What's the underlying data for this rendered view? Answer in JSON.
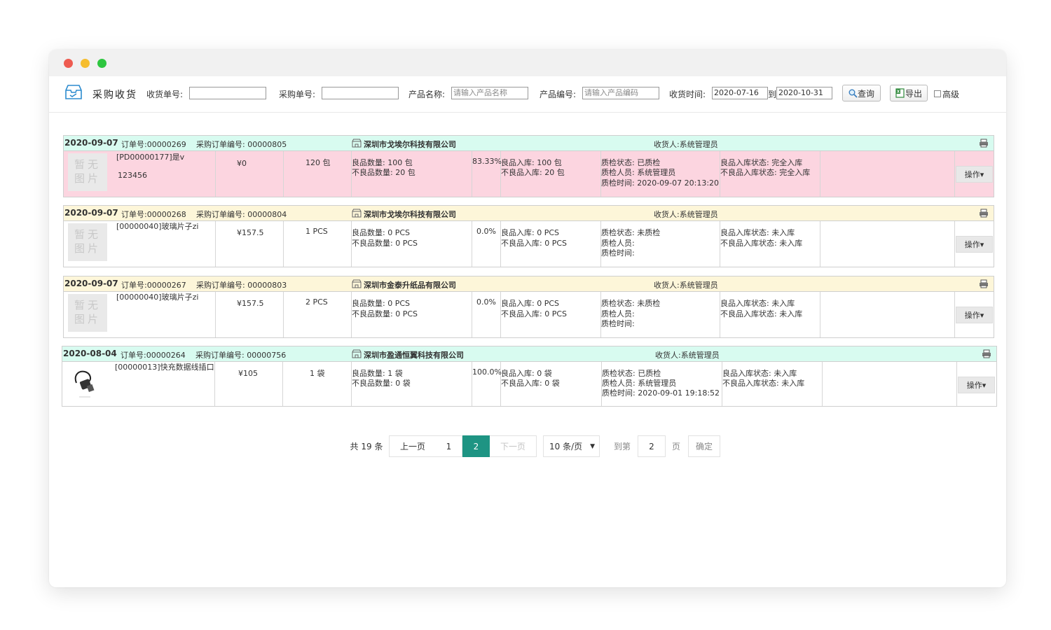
{
  "page": {
    "title": "采购收货",
    "filters": {
      "receipt_no_label": "收货单号:",
      "receipt_no_value": "",
      "purchase_no_label": "采购单号:",
      "purchase_no_value": "",
      "product_name_label": "产品名称:",
      "product_name_placeholder": "请输入产品名称",
      "product_code_label": "产品编号:",
      "product_code_placeholder": "请输入产品编码",
      "receive_time_label": "收货时间:",
      "date_from": "2020-07-16",
      "date_to_sep": "到",
      "date_to": "2020-10-31",
      "query_button": "查询",
      "export_button": "导出",
      "advanced_label": "高级"
    }
  },
  "colors": {
    "header_green": "#d8fbf0",
    "header_yellow": "#fdf6d9",
    "row_pink": "#fcd5e0",
    "pager_active": "#1e9483"
  },
  "orders": [
    {
      "date": "2020-09-07",
      "order_no": "订单号:00000269",
      "po_no": "采购订单编号: 00000805",
      "supplier": "深圳市戈埃尔科技有限公司",
      "receiver": "收货人:系统管理员",
      "image_text": "暂无图片",
      "product_line1": "[PD00000177]是v",
      "product_line2": "123456",
      "price": "¥0",
      "qty": "120 包",
      "good_qty": "良品数量:   100 包",
      "bad_qty": "不良品数量: 20 包",
      "rate": "83.33%",
      "good_in": "良品入库: 100 包",
      "bad_in": "不良品入库: 20 包",
      "qc_status": "质检状态: 已质检",
      "qc_person": "质检人员: 系统管理员",
      "qc_time": "质检时间: 2020-09-07 20:13:20",
      "good_in_status": "良品入库状态: 完全入库",
      "bad_in_status": "不良品入库状态: 完全入库",
      "op_button": "操作▾"
    },
    {
      "date": "2020-09-07",
      "order_no": "订单号:00000268",
      "po_no": "采购订单编号: 00000804",
      "supplier": "深圳市戈埃尔科技有限公司",
      "receiver": "收货人:系统管理员",
      "image_text": "暂无图片",
      "product_line1": "[00000040]玻璃片子zi",
      "product_line2": "",
      "price": "¥157.5",
      "qty": "1 PCS",
      "good_qty": "良品数量:   0 PCS",
      "bad_qty": "不良品数量: 0 PCS",
      "rate": "0.0%",
      "good_in": "良品入库: 0 PCS",
      "bad_in": "不良品入库: 0 PCS",
      "qc_status": "质检状态: 未质检",
      "qc_person": "质检人员:",
      "qc_time": "质检时间:",
      "good_in_status": "良品入库状态: 未入库",
      "bad_in_status": "不良品入库状态: 未入库",
      "op_button": "操作▾"
    },
    {
      "date": "2020-09-07",
      "order_no": "订单号:00000267",
      "po_no": "采购订单编号: 00000803",
      "supplier": "深圳市金泰升纸品有限公司",
      "receiver": "收货人:系统管理员",
      "image_text": "暂无图片",
      "product_line1": "[00000040]玻璃片子zi",
      "product_line2": "",
      "price": "¥157.5",
      "qty": "2 PCS",
      "good_qty": "良品数量:   0 PCS",
      "bad_qty": "不良品数量: 0 PCS",
      "rate": "0.0%",
      "good_in": "良品入库: 0 PCS",
      "bad_in": "不良品入库: 0 PCS",
      "qc_status": "质检状态: 未质检",
      "qc_person": "质检人员:",
      "qc_time": "质检时间:",
      "good_in_status": "良品入库状态: 未入库",
      "bad_in_status": "不良品入库状态: 未入库",
      "op_button": "操作▾"
    },
    {
      "date": "2020-08-04",
      "order_no": "订单号:00000264",
      "po_no": "采购订单编号: 00000756",
      "supplier": "深圳市盈通恒翼科技有限公司",
      "receiver": "收货人:系统管理员",
      "image_text": "",
      "product_line1": "[00000013]快充数据线插口",
      "product_line2": "",
      "price": "¥105",
      "qty": "1 袋",
      "good_qty": "良品数量:   1 袋",
      "bad_qty": "不良品数量: 0 袋",
      "rate": "100.0%",
      "good_in": "良品入库: 0 袋",
      "bad_in": "不良品入库: 0 袋",
      "qc_status": "质检状态: 已质检",
      "qc_person": "质检人员: 系统管理员",
      "qc_time": "质检时间: 2020-09-01 19:18:52",
      "good_in_status": "良品入库状态: 未入库",
      "bad_in_status": "不良品入库状态: 未入库",
      "op_button": "操作▾"
    }
  ],
  "pagination": {
    "total": "共 19 条",
    "prev": "上一页",
    "page1": "1",
    "page2": "2",
    "next": "下一页",
    "page_size": "10 条/页",
    "goto_label": "到第",
    "goto_value": "2",
    "page_unit": "页",
    "confirm": "确定"
  }
}
